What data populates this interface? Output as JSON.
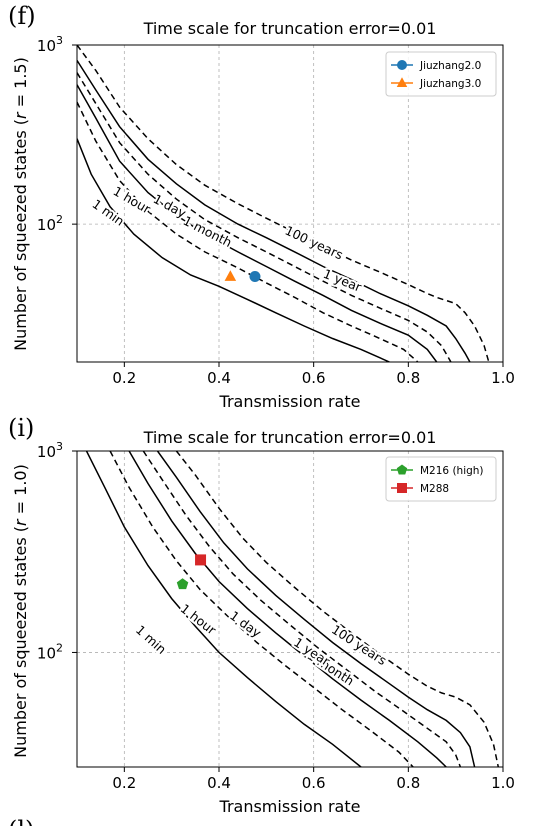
{
  "chart_data": [
    {
      "panel": "(f)",
      "type": "line",
      "title": "Time scale for truncation error=0.01",
      "xlabel": "Transmission rate",
      "ylabel": "Number of squeezed states (r = 1.5)",
      "ylabel_main": "Number of squeezed states (",
      "ylabel_var": "r",
      "ylabel_rest": " = 1.5)",
      "xlim": [
        0.1,
        1.0
      ],
      "ylim": [
        17,
        1000
      ],
      "yscale": "log",
      "grid": true,
      "xticks": [
        {
          "value": 0.2,
          "label": "0.2"
        },
        {
          "value": 0.4,
          "label": "0.4"
        },
        {
          "value": 0.6,
          "label": "0.6"
        },
        {
          "value": 0.8,
          "label": "0.8"
        },
        {
          "value": 1.0,
          "label": "1.0"
        }
      ],
      "yticks": [
        {
          "value": 100,
          "base": "10",
          "exp": "2"
        },
        {
          "value": 1000,
          "base": "10",
          "exp": "3"
        }
      ],
      "contours": [
        {
          "label": "1 min",
          "style": "solid",
          "points": [
            [
              0.1,
              300
            ],
            [
              0.13,
              190
            ],
            [
              0.17,
              125
            ],
            [
              0.22,
              88
            ],
            [
              0.28,
              65
            ],
            [
              0.34,
              52
            ],
            [
              0.4,
              45
            ],
            [
              0.46,
              38
            ],
            [
              0.52,
              32
            ],
            [
              0.58,
              27
            ],
            [
              0.64,
              23
            ],
            [
              0.7,
              20
            ],
            [
              0.76,
              17
            ]
          ],
          "label_at": [
            0.165,
            115
          ],
          "label_angle": 35
        },
        {
          "label": "1 hour",
          "style": "dashed",
          "points": [
            [
              0.1,
              480
            ],
            [
              0.14,
              290
            ],
            [
              0.19,
              175
            ],
            [
              0.25,
              118
            ],
            [
              0.31,
              88
            ],
            [
              0.37,
              70
            ],
            [
              0.44,
              57
            ],
            [
              0.5,
              47
            ],
            [
              0.56,
              39
            ],
            [
              0.62,
              32
            ],
            [
              0.68,
              27
            ],
            [
              0.74,
              23
            ],
            [
              0.79,
              20
            ],
            [
              0.82,
              17
            ]
          ],
          "label_at": [
            0.215,
            135
          ],
          "label_angle": 30
        },
        {
          "label": "1 day",
          "style": "solid",
          "points": [
            [
              0.1,
              600
            ],
            [
              0.14,
              390
            ],
            [
              0.19,
              225
            ],
            [
              0.25,
              150
            ],
            [
              0.31,
              112
            ],
            [
              0.37,
              88
            ],
            [
              0.44,
              70
            ],
            [
              0.5,
              58
            ],
            [
              0.56,
              48
            ],
            [
              0.62,
              40
            ],
            [
              0.68,
              33
            ],
            [
              0.74,
              28
            ],
            [
              0.8,
              24
            ],
            [
              0.84,
              20
            ],
            [
              0.86,
              17
            ]
          ],
          "label_at": [
            0.295,
            125
          ],
          "label_angle": 28
        },
        {
          "label": "1 month",
          "style": "dashed",
          "points": [
            [
              0.1,
              700
            ],
            [
              0.14,
              470
            ],
            [
              0.19,
              285
            ],
            [
              0.25,
              190
            ],
            [
              0.31,
              138
            ],
            [
              0.37,
              106
            ],
            [
              0.44,
              84
            ],
            [
              0.5,
              70
            ],
            [
              0.56,
              58
            ],
            [
              0.62,
              48
            ],
            [
              0.68,
              40
            ],
            [
              0.74,
              34
            ],
            [
              0.8,
              29
            ],
            [
              0.84,
              25
            ],
            [
              0.87,
              21
            ],
            [
              0.89,
              17
            ]
          ],
          "label_at": [
            0.375,
            90
          ],
          "label_angle": 27
        },
        {
          "label": "1 year",
          "style": "solid",
          "points": [
            [
              0.1,
              820
            ],
            [
              0.14,
              560
            ],
            [
              0.19,
              350
            ],
            [
              0.25,
              230
            ],
            [
              0.31,
              168
            ],
            [
              0.37,
              128
            ],
            [
              0.44,
              100
            ],
            [
              0.5,
              84
            ],
            [
              0.56,
              70
            ],
            [
              0.62,
              58
            ],
            [
              0.68,
              49
            ],
            [
              0.74,
              41
            ],
            [
              0.8,
              35
            ],
            [
              0.84,
              31
            ],
            [
              0.88,
              27
            ],
            [
              0.9,
              23
            ],
            [
              0.92,
              19
            ],
            [
              0.93,
              17
            ]
          ],
          "label_at": [
            0.66,
            48
          ],
          "label_angle": 22
        },
        {
          "label": "100 years",
          "style": "dashed",
          "points": [
            [
              0.1,
              1000
            ],
            [
              0.14,
              720
            ],
            [
              0.19,
              450
            ],
            [
              0.25,
              300
            ],
            [
              0.31,
              215
            ],
            [
              0.37,
              165
            ],
            [
              0.44,
              130
            ],
            [
              0.5,
              108
            ],
            [
              0.56,
              90
            ],
            [
              0.62,
              75
            ],
            [
              0.68,
              63
            ],
            [
              0.74,
              54
            ],
            [
              0.8,
              46
            ],
            [
              0.84,
              41
            ],
            [
              0.86,
              39
            ],
            [
              0.9,
              36
            ],
            [
              0.92,
              32
            ],
            [
              0.94,
              27
            ],
            [
              0.96,
              21
            ],
            [
              0.97,
              17
            ]
          ],
          "label_at": [
            0.6,
            78
          ],
          "label_angle": 25
        }
      ],
      "markers": [
        {
          "name": "Jiuzhang2.0",
          "x": 0.476,
          "y": 51,
          "shape": "circle",
          "color": "#1f77b4"
        },
        {
          "name": "Jiuzhang3.0",
          "x": 0.424,
          "y": 51,
          "shape": "triangle",
          "color": "#ff7f0e"
        }
      ],
      "legend": "top-right"
    },
    {
      "panel": "(i)",
      "type": "line",
      "title": "Time scale for truncation error=0.01",
      "xlabel": "Transmission rate",
      "ylabel": "Number of squeezed states (r = 1.0)",
      "ylabel_main": "Number of squeezed states (",
      "ylabel_var": "r",
      "ylabel_rest": " = 1.0)",
      "xlim": [
        0.1,
        1.0
      ],
      "ylim": [
        27,
        1000
      ],
      "yscale": "log",
      "grid": true,
      "xticks": [
        {
          "value": 0.2,
          "label": "0.2"
        },
        {
          "value": 0.4,
          "label": "0.4"
        },
        {
          "value": 0.6,
          "label": "0.6"
        },
        {
          "value": 0.8,
          "label": "0.8"
        },
        {
          "value": 1.0,
          "label": "1.0"
        }
      ],
      "yticks": [
        {
          "value": 100,
          "base": "10",
          "exp": "2"
        },
        {
          "value": 1000,
          "base": "10",
          "exp": "3"
        }
      ],
      "contours": [
        {
          "label": "1 min",
          "style": "solid",
          "points": [
            [
              0.12,
              1000
            ],
            [
              0.16,
              650
            ],
            [
              0.2,
              420
            ],
            [
              0.25,
              270
            ],
            [
              0.3,
              185
            ],
            [
              0.35,
              135
            ],
            [
              0.4,
              100
            ],
            [
              0.46,
              75
            ],
            [
              0.52,
              57
            ],
            [
              0.58,
              44
            ],
            [
              0.64,
              35
            ],
            [
              0.7,
              27
            ]
          ],
          "label_at": [
            0.255,
            115
          ],
          "label_angle": 42
        },
        {
          "label": "1 hour",
          "style": "dashed",
          "points": [
            [
              0.17,
              1000
            ],
            [
              0.21,
              660
            ],
            [
              0.26,
              420
            ],
            [
              0.31,
              285
            ],
            [
              0.36,
              205
            ],
            [
              0.42,
              150
            ],
            [
              0.48,
              112
            ],
            [
              0.54,
              86
            ],
            [
              0.6,
              67
            ],
            [
              0.66,
              52
            ],
            [
              0.72,
              41
            ],
            [
              0.78,
              32
            ],
            [
              0.81,
              27
            ]
          ],
          "label_at": [
            0.355,
            145
          ],
          "label_angle": 38
        },
        {
          "label": "1 day",
          "style": "solid",
          "points": [
            [
              0.21,
              1000
            ],
            [
              0.25,
              690
            ],
            [
              0.3,
              450
            ],
            [
              0.35,
              310
            ],
            [
              0.4,
              225
            ],
            [
              0.46,
              165
            ],
            [
              0.52,
              125
            ],
            [
              0.58,
              96
            ],
            [
              0.64,
              74
            ],
            [
              0.7,
              58
            ],
            [
              0.76,
              46
            ],
            [
              0.82,
              36
            ],
            [
              0.86,
              30
            ],
            [
              0.88,
              27
            ]
          ],
          "label_at": [
            0.455,
            137
          ],
          "label_angle": 36
        },
        {
          "label": "1 month",
          "style": "dashed",
          "points": [
            [
              0.24,
              1000
            ],
            [
              0.28,
              720
            ],
            [
              0.33,
              480
            ],
            [
              0.38,
              335
            ],
            [
              0.43,
              245
            ],
            [
              0.49,
              180
            ],
            [
              0.55,
              137
            ],
            [
              0.61,
              105
            ],
            [
              0.67,
              82
            ],
            [
              0.73,
              64
            ],
            [
              0.79,
              51
            ],
            [
              0.84,
              42
            ],
            [
              0.88,
              36
            ],
            [
              0.9,
              31
            ],
            [
              0.91,
              27
            ]
          ],
          "label_at": [
            0.635,
            83
          ],
          "label_angle": 33
        },
        {
          "label": "1 year",
          "style": "solid",
          "points": [
            [
              0.27,
              1000
            ],
            [
              0.31,
              740
            ],
            [
              0.36,
              500
            ],
            [
              0.41,
              350
            ],
            [
              0.46,
              260
            ],
            [
              0.52,
              192
            ],
            [
              0.58,
              146
            ],
            [
              0.64,
              112
            ],
            [
              0.7,
              88
            ],
            [
              0.76,
              70
            ],
            [
              0.8,
              60
            ],
            [
              0.84,
              52
            ],
            [
              0.88,
              46
            ],
            [
              0.91,
              40
            ],
            [
              0.93,
              34
            ],
            [
              0.94,
              27
            ]
          ],
          "label_at": [
            0.595,
            100
          ],
          "label_angle": 33
        },
        {
          "label": "100 years",
          "style": "dashed",
          "points": [
            [
              0.31,
              1000
            ],
            [
              0.35,
              760
            ],
            [
              0.4,
              520
            ],
            [
              0.45,
              370
            ],
            [
              0.5,
              280
            ],
            [
              0.56,
              210
            ],
            [
              0.62,
              160
            ],
            [
              0.68,
              125
            ],
            [
              0.74,
              98
            ],
            [
              0.8,
              78
            ],
            [
              0.84,
              68
            ],
            [
              0.87,
              63
            ],
            [
              0.9,
              60
            ],
            [
              0.93,
              55
            ],
            [
              0.96,
              45
            ],
            [
              0.98,
              35
            ],
            [
              0.99,
              27
            ]
          ],
          "label_at": [
            0.695,
            108
          ],
          "label_angle": 33
        }
      ],
      "markers": [
        {
          "name": "M216 (high)",
          "x": 0.323,
          "y": 218,
          "shape": "pentagon",
          "color": "#2ca02c"
        },
        {
          "name": "M288",
          "x": 0.361,
          "y": 288,
          "shape": "square",
          "color": "#d62728"
        }
      ],
      "legend": "top-right"
    }
  ],
  "footer_partial_label": "(l)"
}
